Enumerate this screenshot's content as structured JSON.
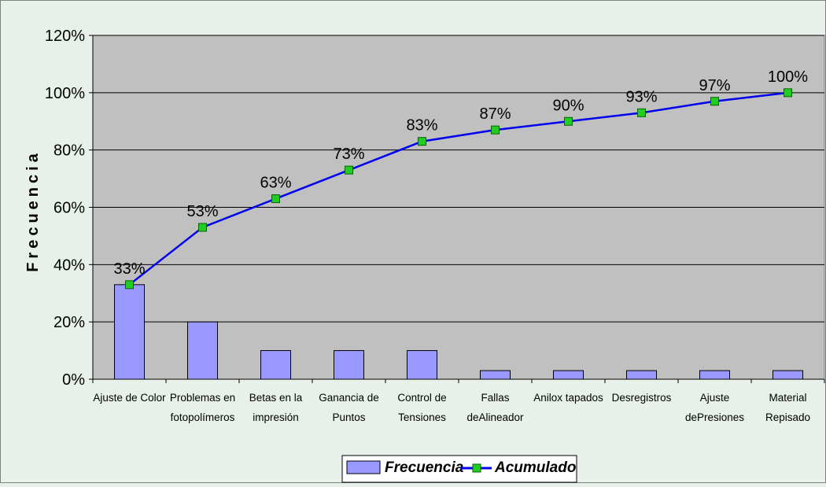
{
  "chart_data": {
    "type": "bar",
    "categories": [
      [
        "Ajuste de Color"
      ],
      [
        "Problemas en",
        "fotopolímeros"
      ],
      [
        "Betas en la",
        "impresión"
      ],
      [
        "Ganancia de",
        "Puntos"
      ],
      [
        "Control de",
        "Tensiones"
      ],
      [
        "Fallas",
        "deAlineador"
      ],
      [
        "Anilox tapados"
      ],
      [
        "Desregistros"
      ],
      [
        "Ajuste",
        "dePresiones"
      ],
      [
        "Material",
        "Repisado"
      ]
    ],
    "series": [
      {
        "name": "Frecuencia",
        "type": "bar",
        "values": [
          33,
          20,
          10,
          10,
          10,
          3,
          3,
          3,
          3,
          3
        ],
        "color": "#9999ff"
      },
      {
        "name": "Acumulado",
        "type": "line",
        "values": [
          33,
          53,
          63,
          73,
          83,
          87,
          90,
          93,
          97,
          100
        ],
        "color": "#0000ee",
        "marker_color": "#22cc22"
      }
    ],
    "data_labels": [
      "33%",
      "53%",
      "63%",
      "73%",
      "83%",
      "87%",
      "90%",
      "93%",
      "97%",
      "100%"
    ],
    "yticks": [
      "0%",
      "20%",
      "40%",
      "60%",
      "80%",
      "100%",
      "120%"
    ],
    "ylim": [
      0,
      120
    ],
    "ylabel": "Frecuencia",
    "xlabel": "",
    "title": "",
    "grid": true,
    "legend": "bottom-center",
    "plot_background": "#c0c0c0",
    "page_background": "#e8f0ea"
  }
}
